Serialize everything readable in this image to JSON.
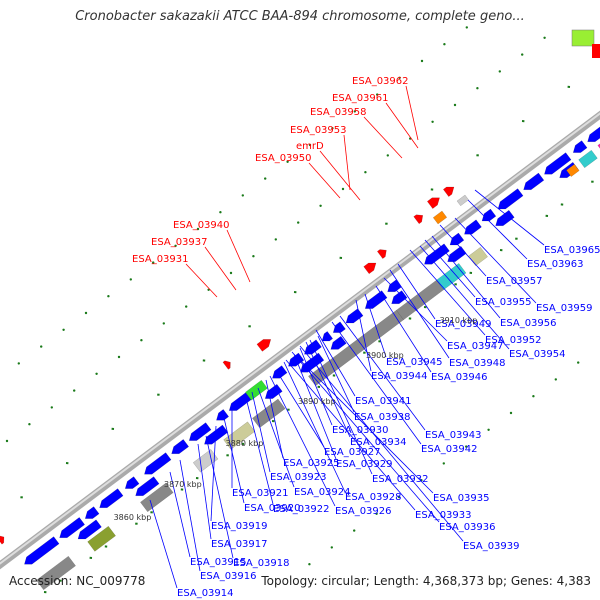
{
  "title": "Cronobacter sakazakii ATCC BAA-894 chromosome, complete geno...",
  "footer": {
    "accession": "Accession: NC_009778",
    "topology": "Topology: circular; Length: 4,368,373 bp; Genes: 4,383"
  },
  "colors": {
    "forward_cds": "#ff0000",
    "reverse_cds": "#0000ff",
    "backbone": "#999999",
    "gc_tick": "#1a7a1a",
    "rna_grey": "#888888",
    "olive": "#8aa030",
    "cyan": "#33cccc",
    "magenta": "#ff22aa",
    "orange": "#ff8800",
    "green": "#33dd33",
    "khaki": "#cccc99"
  },
  "scale_labels": [
    "3860 kbp",
    "3870 kbp",
    "3880 kbp",
    "3890 kbp",
    "3900 kbp",
    "3910 kbp"
  ],
  "forward_labels": [
    "ESA_03962",
    "ESA_03961",
    "ESA_03958",
    "ESA_03953",
    "emrD",
    "ESA_03950",
    "ESA_03940",
    "ESA_03937",
    "ESA_03931"
  ],
  "reverse_labels": [
    "ESA_03965",
    "ESA_03963",
    "ESA_03959",
    "ESA_03957",
    "ESA_03956",
    "ESA_03955",
    "ESA_03954",
    "ESA_03952",
    "ESA_03949",
    "ESA_03948",
    "ESA_03947",
    "ESA_03946",
    "ESA_03945",
    "ESA_03944",
    "ESA_03943",
    "ESA_03942",
    "ESA_03941",
    "ESA_03939",
    "ESA_03938",
    "ESA_03936",
    "ESA_03935",
    "ESA_03934",
    "ESA_03933",
    "ESA_03932",
    "ESA_03930",
    "ESA_03929",
    "ESA_03928",
    "ESA_03927",
    "ESA_03926",
    "ESA_03925",
    "ESA_03924",
    "ESA_03923",
    "ESA_03922",
    "ESA_03921",
    "ESA_03920",
    "ESA_03919",
    "ESA_03918",
    "ESA_03917",
    "ESA_03916",
    "ESA_03915",
    "ESA_03914"
  ]
}
